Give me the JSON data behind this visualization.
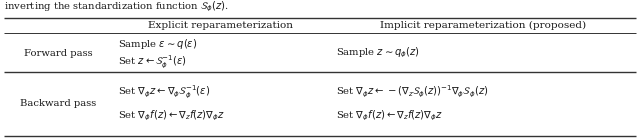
{
  "title_text": "inverting the standardization function $\\mathcal{S}_\\phi(z)$.",
  "col_headers": [
    "",
    "Explicit reparameterization",
    "Implicit reparameterization (proposed)"
  ],
  "row_headers": [
    "Forward pass",
    "Backward pass"
  ],
  "cell_data": [
    [
      "Sample $\\varepsilon \\sim q(\\varepsilon)$\nSet $z \\leftarrow \\mathcal{S}_\\phi^{-1}(\\varepsilon)$",
      "Sample $z \\sim q_\\phi(z)$"
    ],
    [
      "Set $\\nabla_\\phi z \\leftarrow \\nabla_\\phi \\mathcal{S}_\\phi^{-1}(\\varepsilon)$\nSet $\\nabla_\\phi f(z) \\leftarrow \\nabla_z f(z) \\nabla_\\phi z$",
      "Set $\\nabla_\\phi z \\leftarrow -(\\nabla_z \\mathcal{S}_\\phi(z))^{-1}\\nabla_\\phi \\mathcal{S}_\\phi(z)$\nSet $\\nabla_\\phi f(z) \\leftarrow \\nabla_z f(z) \\nabla_\\phi z$"
    ]
  ],
  "background_color": "#ffffff",
  "text_color": "#1a1a1a",
  "line_color": "#333333",
  "font_size": 7.2,
  "header_font_size": 7.5
}
